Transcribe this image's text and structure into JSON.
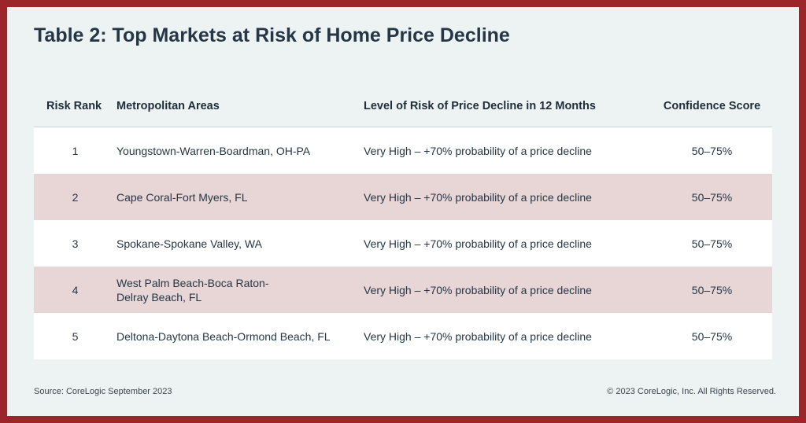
{
  "title": "Table 2: Top Markets at Risk of Home Price Decline",
  "table": {
    "headers": {
      "rank": "Risk Rank",
      "metro": "Metropolitan Areas",
      "level": "Level of Risk of Price Decline in 12 Months",
      "confidence": "Confidence Score"
    },
    "rows": [
      {
        "rank": "1",
        "metro": "Youngstown-Warren-Boardman, OH-PA",
        "level": "Very High – +70% probability of a price decline",
        "confidence": "50–75%"
      },
      {
        "rank": "2",
        "metro": "Cape Coral-Fort Myers, FL",
        "level": "Very High – +70% probability of a price decline",
        "confidence": "50–75%"
      },
      {
        "rank": "3",
        "metro": "Spokane-Spokane Valley, WA",
        "level": "Very High – +70% probability of a price decline",
        "confidence": "50–75%"
      },
      {
        "rank": "4",
        "metro_line1": "West Palm Beach-Boca Raton-",
        "metro_line2": "Delray Beach, FL",
        "level": "Very High – +70% probability of a price decline",
        "confidence": "50–75%"
      },
      {
        "rank": "5",
        "metro": "Deltona-Daytona Beach-Ormond Beach, FL",
        "level": "Very High – +70% probability of a price decline",
        "confidence": "50–75%"
      }
    ]
  },
  "footer": {
    "source": "Source: CoreLogic September 2023",
    "copyright": "© 2023 CoreLogic, Inc. All Rights Reserved."
  },
  "colors": {
    "frame": "#9b2528",
    "panel": "#edf3f3",
    "row_alt": "#e8d5d6",
    "row": "#ffffff",
    "text": "#253746"
  }
}
